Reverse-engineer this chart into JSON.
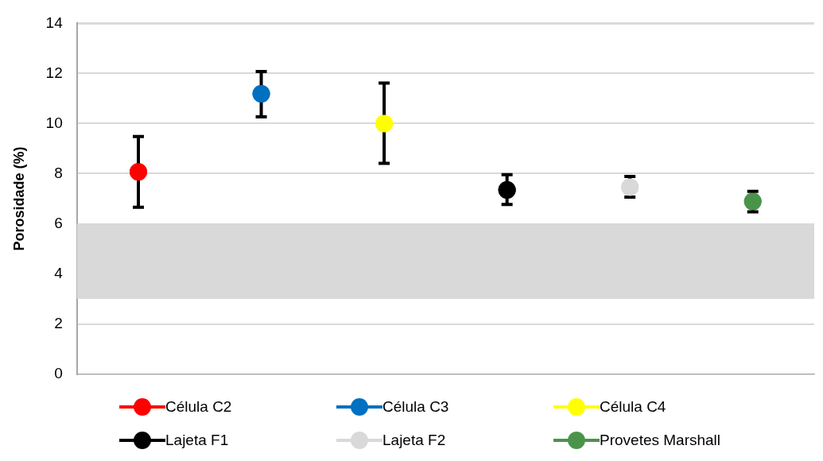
{
  "chart_data": {
    "type": "scatter",
    "ylabel": "Porosidade (%)",
    "categories": [
      null,
      null,
      null,
      null,
      null,
      null
    ],
    "ylim": [
      0,
      14
    ],
    "yticks": [
      0,
      2,
      4,
      6,
      8,
      10,
      12,
      14
    ],
    "grid": "y",
    "legend": "bottom",
    "tick_labels": "y",
    "marker": "circle",
    "bands": [
      {
        "axis": "y",
        "from": 3,
        "to": 6,
        "color": "#d9d9d9"
      }
    ],
    "series": [
      {
        "name": "Célula C2",
        "color": "#ff0000",
        "values": [
          8.07,
          null,
          null,
          null,
          null,
          null
        ],
        "errors": [
          [
            6.66,
            9.48
          ],
          null,
          null,
          null,
          null,
          null
        ]
      },
      {
        "name": "Célula C3",
        "color": "#0070c0",
        "values": [
          null,
          11.19,
          null,
          null,
          null,
          null
        ],
        "errors": [
          null,
          [
            10.27,
            12.08
          ],
          null,
          null,
          null,
          null
        ]
      },
      {
        "name": "Célula C4",
        "color": "#ffff00",
        "values": [
          null,
          null,
          10.0,
          null,
          null,
          null
        ],
        "errors": [
          null,
          null,
          [
            8.41,
            11.62
          ],
          null,
          null,
          null
        ]
      },
      {
        "name": "Lajeta F1",
        "color": "#000000",
        "values": [
          null,
          null,
          null,
          7.35,
          null,
          null
        ],
        "errors": [
          null,
          null,
          null,
          [
            6.77,
            7.96
          ],
          null,
          null
        ]
      },
      {
        "name": "Lajeta F2",
        "color": "#d9d9d9",
        "values": [
          null,
          null,
          null,
          null,
          7.46,
          null
        ],
        "errors": [
          null,
          null,
          null,
          null,
          [
            7.06,
            7.89
          ],
          null
        ]
      },
      {
        "name": "Provetes Marshall",
        "color": "#4a944a",
        "values": [
          null,
          null,
          null,
          null,
          null,
          6.89
        ],
        "errors": [
          null,
          null,
          null,
          null,
          null,
          [
            6.48,
            7.29
          ]
        ]
      }
    ]
  }
}
